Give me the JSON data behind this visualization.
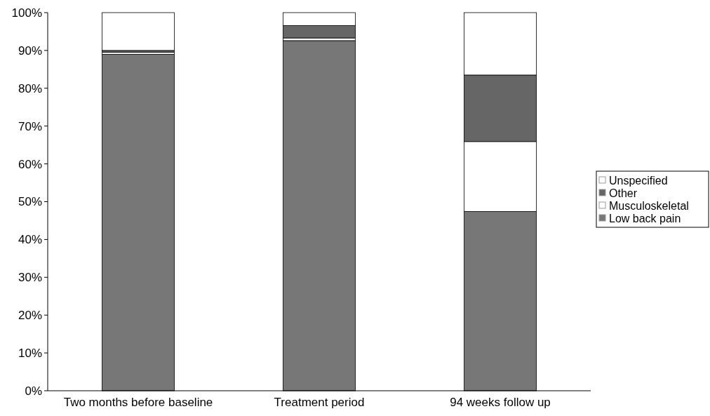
{
  "chart_data": {
    "type": "bar",
    "stacked": true,
    "categories": [
      "Two months before baseline",
      "Treatment period",
      "94 weeks follow up"
    ],
    "series": [
      {
        "name": "Low back pain",
        "color": "#777777",
        "values": [
          89,
          92.6,
          47.4
        ]
      },
      {
        "name": "Musculoskeletal",
        "color": "#ffffff",
        "values": [
          0.5,
          0.7,
          18.5
        ]
      },
      {
        "name": "Other",
        "color": "#666666",
        "values": [
          0.5,
          3.3,
          17.6
        ]
      },
      {
        "name": "Unspecified",
        "color": "#ffffff",
        "values": [
          10,
          3.4,
          16.5
        ]
      }
    ],
    "ylim": [
      0,
      100
    ],
    "yticks": [
      {
        "value": 0,
        "label": "0%"
      },
      {
        "value": 10,
        "label": "10%"
      },
      {
        "value": 20,
        "label": "20%"
      },
      {
        "value": 30,
        "label": "30%"
      },
      {
        "value": 40,
        "label": "40%"
      },
      {
        "value": 50,
        "label": "50%"
      },
      {
        "value": 60,
        "label": "60%"
      },
      {
        "value": 70,
        "label": "70%"
      },
      {
        "value": 80,
        "label": "80%"
      },
      {
        "value": 90,
        "label": "90%"
      },
      {
        "value": 100,
        "label": "100%"
      }
    ],
    "legend": "right",
    "grid": false
  }
}
